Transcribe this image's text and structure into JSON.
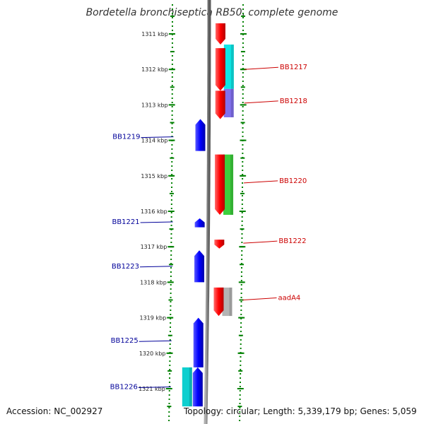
{
  "title": "Bordetella bronchiseptica RB50, complete genome",
  "footer": {
    "accession": "Accession: NC_002927",
    "summary": "Topology: circular; Length: 5,339,179 bp; Genes: 5,059"
  },
  "colors": {
    "forward_gene": "#ff0000",
    "reverse_gene": "#0000ff",
    "genome_line": "#808080",
    "ruler_dots": "#008000",
    "forward_label": "#cc0000",
    "reverse_label": "#000099"
  },
  "scale": {
    "unit": "kbp",
    "ticks": [
      1311,
      1312,
      1313,
      1314,
      1315,
      1316,
      1317,
      1318,
      1319,
      1320,
      1321
    ]
  },
  "genes": [
    {
      "strand": "+",
      "start": 1310.7,
      "end": 1311.3,
      "label": ""
    },
    {
      "strand": "+",
      "start": 1311.4,
      "end": 1312.6,
      "label": ""
    },
    {
      "strand": "+",
      "start": 1312.6,
      "end": 1313.4,
      "label": ""
    },
    {
      "strand": "-",
      "start": 1313.4,
      "end": 1314.3,
      "label": ""
    },
    {
      "strand": "+",
      "start": 1314.4,
      "end": 1316.1,
      "label": ""
    },
    {
      "strand": "-",
      "start": 1316.2,
      "end": 1316.45,
      "label": ""
    },
    {
      "strand": "+",
      "start": 1316.8,
      "end": 1317.05,
      "label": ""
    },
    {
      "strand": "-",
      "start": 1317.1,
      "end": 1318.0,
      "label": ""
    },
    {
      "strand": "+",
      "start": 1318.15,
      "end": 1318.95,
      "label": ""
    },
    {
      "strand": "-",
      "start": 1319.0,
      "end": 1320.4,
      "label": ""
    },
    {
      "strand": "-",
      "start": 1320.4,
      "end": 1321.5,
      "label": ""
    }
  ],
  "features": [
    {
      "side": "forward",
      "start": 1311.3,
      "end": 1312.55,
      "color": "#00e5e5"
    },
    {
      "side": "forward",
      "start": 1312.55,
      "end": 1313.35,
      "color": "#7b68ee"
    },
    {
      "side": "forward",
      "start": 1314.4,
      "end": 1316.1,
      "color": "#33cc33"
    },
    {
      "side": "forward",
      "start": 1318.15,
      "end": 1318.95,
      "color": "#b0b0b0"
    },
    {
      "side": "reverse",
      "start": 1320.4,
      "end": 1321.5,
      "color": "#00cccc"
    }
  ],
  "labels": [
    {
      "text": "BB1217",
      "strand": "+",
      "position": 1312.0
    },
    {
      "text": "BB1218",
      "strand": "+",
      "position": 1312.95
    },
    {
      "text": "BB1219",
      "strand": "-",
      "position": 1313.9
    },
    {
      "text": "BB1220",
      "strand": "+",
      "position": 1315.2
    },
    {
      "text": "BB1221",
      "strand": "-",
      "position": 1316.3
    },
    {
      "text": "BB1222",
      "strand": "+",
      "position": 1316.9
    },
    {
      "text": "BB1223",
      "strand": "-",
      "position": 1317.55
    },
    {
      "text": "aadA4",
      "strand": "+",
      "position": 1318.5
    },
    {
      "text": "BB1225",
      "strand": "-",
      "position": 1319.65
    },
    {
      "text": "BB1226",
      "strand": "-",
      "position": 1320.95
    }
  ]
}
